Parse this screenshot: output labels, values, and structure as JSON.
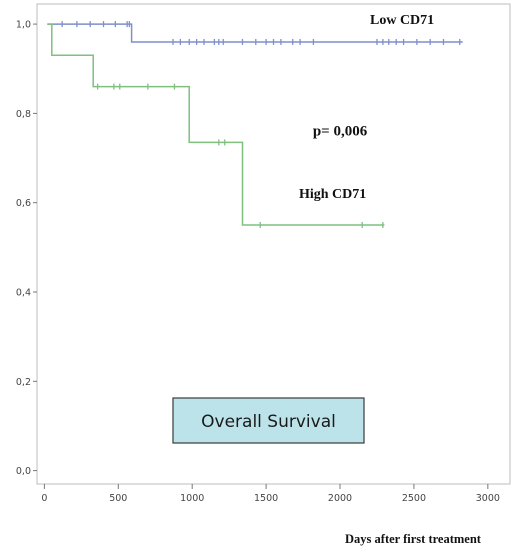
{
  "chart_data": {
    "type": "line",
    "subtype": "kaplan-meier",
    "title": "",
    "xlabel": "Days after first treatment",
    "ylabel": "",
    "xlim": [
      -50,
      3150
    ],
    "ylim": [
      -0.03,
      1.045
    ],
    "x_ticks": [
      0,
      500,
      1000,
      1500,
      2000,
      2500,
      3000
    ],
    "x_tick_labels": [
      "0",
      "500",
      "1000",
      "1500",
      "2000",
      "2500",
      "3000"
    ],
    "y_ticks": [
      0.0,
      0.2,
      0.4,
      0.6,
      0.8,
      1.0
    ],
    "y_tick_labels": [
      "0,0",
      "0,2",
      "0,4",
      "0,6",
      "0,8",
      "1,0"
    ],
    "grid": false,
    "legend": "none",
    "series": [
      {
        "name": "Low CD71",
        "color": "#7f8fcc",
        "steps": [
          [
            20,
            1.0
          ],
          [
            590,
            1.0
          ],
          [
            590,
            0.96
          ],
          [
            2830,
            0.96
          ]
        ],
        "censored": [
          [
            120,
            1.0
          ],
          [
            220,
            1.0
          ],
          [
            310,
            1.0
          ],
          [
            400,
            1.0
          ],
          [
            480,
            1.0
          ],
          [
            560,
            1.0
          ],
          [
            575,
            1.0
          ],
          [
            870,
            0.96
          ],
          [
            920,
            0.96
          ],
          [
            980,
            0.96
          ],
          [
            1030,
            0.96
          ],
          [
            1080,
            0.96
          ],
          [
            1150,
            0.96
          ],
          [
            1180,
            0.96
          ],
          [
            1210,
            0.96
          ],
          [
            1340,
            0.96
          ],
          [
            1430,
            0.96
          ],
          [
            1500,
            0.96
          ],
          [
            1550,
            0.96
          ],
          [
            1600,
            0.96
          ],
          [
            1680,
            0.96
          ],
          [
            1730,
            0.96
          ],
          [
            1820,
            0.96
          ],
          [
            2250,
            0.96
          ],
          [
            2290,
            0.96
          ],
          [
            2330,
            0.96
          ],
          [
            2380,
            0.96
          ],
          [
            2430,
            0.96
          ],
          [
            2520,
            0.96
          ],
          [
            2610,
            0.96
          ],
          [
            2700,
            0.96
          ],
          [
            2810,
            0.96
          ]
        ]
      },
      {
        "name": "High CD71",
        "color": "#7fc07f",
        "steps": [
          [
            20,
            1.0
          ],
          [
            50,
            1.0
          ],
          [
            50,
            0.93
          ],
          [
            330,
            0.93
          ],
          [
            330,
            0.86
          ],
          [
            980,
            0.86
          ],
          [
            980,
            0.735
          ],
          [
            1340,
            0.735
          ],
          [
            1340,
            0.55
          ],
          [
            2300,
            0.55
          ]
        ],
        "censored": [
          [
            360,
            0.86
          ],
          [
            470,
            0.86
          ],
          [
            510,
            0.86
          ],
          [
            700,
            0.86
          ],
          [
            880,
            0.86
          ],
          [
            1180,
            0.735
          ],
          [
            1220,
            0.735
          ],
          [
            1460,
            0.55
          ],
          [
            2150,
            0.55
          ],
          [
            2290,
            0.55
          ]
        ]
      }
    ],
    "annotations": [
      {
        "text": "Low CD71",
        "x": 2420,
        "y": 1.0
      },
      {
        "text": "p= 0,006",
        "x": 2000,
        "y": 0.75
      },
      {
        "text": "High CD71",
        "x": 1950,
        "y": 0.61
      }
    ],
    "inset_label": "Overall Survival"
  }
}
